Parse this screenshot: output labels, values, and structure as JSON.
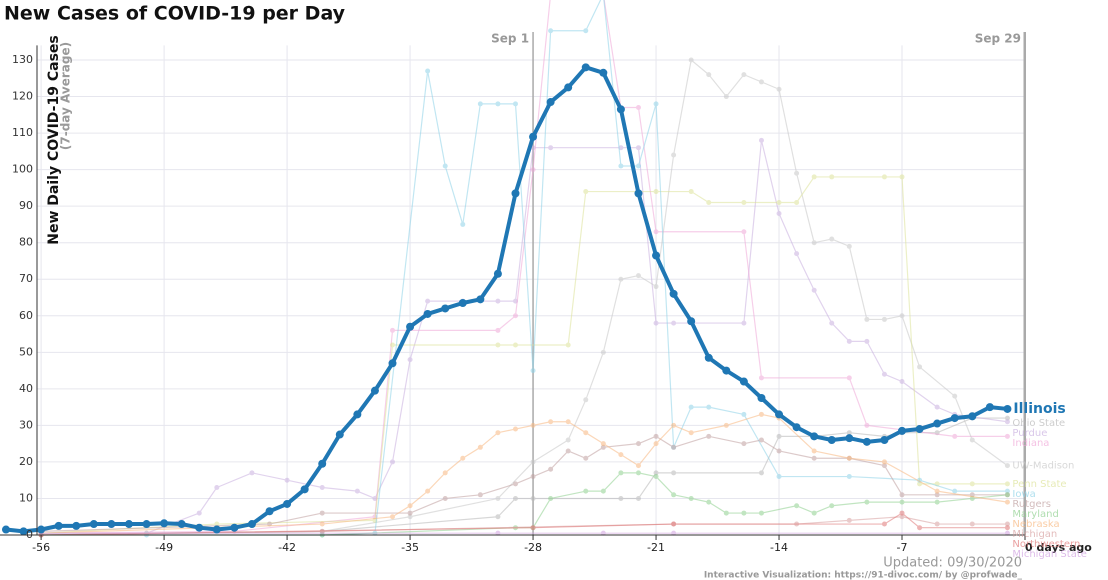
{
  "chart_data": {
    "type": "line",
    "title": "New Cases of COVID-19 per Day",
    "ylabel": "New Daily COVID-19 Cases",
    "ylabel_note": "(7-day Average)",
    "xlim": [
      -58.34,
      0
    ],
    "ylim": [
      0,
      134
    ],
    "xticks": [
      -56,
      -49,
      -42,
      -35,
      -28,
      -21,
      -14,
      -7,
      {
        "value": 0,
        "label": "0 days ago"
      }
    ],
    "yticks": [
      0,
      10,
      20,
      30,
      40,
      50,
      60,
      70,
      80,
      90,
      100,
      110,
      120,
      130
    ],
    "grid": true,
    "annotations": [
      {
        "x": -28,
        "label": "Sep 1"
      },
      {
        "x": 0,
        "label": "Sep 29"
      }
    ],
    "updated": "Updated: 09/30/2020",
    "credit": "Interactive Visualization: https://91-divoc.com/ by @profwade_",
    "series": [
      {
        "name": "Illinois",
        "color": "#1f77b4",
        "highlight": true,
        "x": [
          -58,
          -57,
          -56,
          -55,
          -54,
          -53,
          -52,
          -51,
          -50,
          -49,
          -48,
          -47,
          -46,
          -45,
          -44,
          -43,
          -42,
          -41,
          -40,
          -39,
          -38,
          -37,
          -36,
          -35,
          -34,
          -33,
          -32,
          -31,
          -30,
          -29,
          -28,
          -27,
          -26,
          -25,
          -24,
          -23,
          -22,
          -21,
          -20,
          -19,
          -18,
          -17,
          -16,
          -15,
          -14,
          -13,
          -12,
          -11,
          -10,
          -9,
          -8,
          -7,
          -6,
          -5,
          -4,
          -3,
          -2,
          -1
        ],
        "values": [
          1.5,
          1,
          1.5,
          2.5,
          2.5,
          3,
          3,
          3,
          3,
          3.2,
          3,
          2,
          1.5,
          2,
          3,
          6.5,
          8.5,
          12.5,
          19.5,
          27.5,
          33,
          39.5,
          47,
          57,
          60.5,
          62,
          63.5,
          64.5,
          71.5,
          93.5,
          109,
          118.5,
          122.5,
          128,
          126.5,
          116.5,
          93.5,
          76.5,
          66,
          58.5,
          48.5,
          45,
          42,
          37.5,
          33,
          29.5,
          27,
          26,
          26.5,
          25.5,
          26,
          28.5,
          29,
          30.5,
          32,
          32.5,
          35,
          34.5
        ]
      },
      {
        "name": "Ohio State",
        "color": "#b8b8b8",
        "x": [
          -56,
          -40,
          -30,
          -29,
          -28,
          -23,
          -22,
          -21,
          -20,
          -15,
          -14,
          -12,
          -10,
          -8,
          -7,
          -5,
          -3,
          -1
        ],
        "values": [
          0,
          1,
          5,
          10,
          10,
          10,
          10,
          17,
          17,
          17,
          27,
          27,
          28,
          27,
          28,
          28,
          32,
          32
        ]
      },
      {
        "name": "Purdue",
        "color": "#c9b0e0",
        "x": [
          -56,
          -50,
          -47,
          -46,
          -44,
          -42,
          -40,
          -38,
          -37,
          -36,
          -35,
          -34,
          -32,
          -30,
          -29,
          -28,
          -27,
          -23,
          -22,
          -21,
          -20,
          -16,
          -15,
          -14,
          -13,
          -12,
          -11,
          -10,
          -9,
          -8,
          -7,
          -5,
          -4,
          -1
        ],
        "values": [
          0.5,
          0.5,
          6,
          13,
          17,
          15,
          13,
          12,
          10,
          20,
          48,
          64,
          64,
          64,
          64,
          106,
          106,
          106,
          106,
          58,
          58,
          58,
          108,
          88,
          77,
          67,
          58,
          53,
          53,
          44,
          42,
          35,
          33,
          31
        ]
      },
      {
        "name": "Indiana",
        "color": "#f0a8d8",
        "x": [
          -56,
          -45,
          -37,
          -36,
          -30,
          -29,
          -28,
          -27,
          -24,
          -23,
          -22,
          -21,
          -16,
          -15,
          -10,
          -9,
          -4,
          -1
        ],
        "values": [
          0.5,
          1,
          5,
          56,
          56,
          60,
          100,
          148,
          148,
          117,
          117,
          83,
          83,
          43,
          43,
          30,
          27,
          27
        ]
      },
      {
        "name": "UW-Madison",
        "color": "#c8c8c8",
        "x": [
          -50,
          -40,
          -35,
          -30,
          -28,
          -26,
          -25,
          -24,
          -23,
          -22,
          -21,
          -20,
          -19,
          -18,
          -17,
          -16,
          -15,
          -14,
          -13,
          -12,
          -11,
          -10,
          -9,
          -8,
          -7,
          -6,
          -4,
          -3,
          -1
        ],
        "values": [
          0.5,
          1,
          5,
          10,
          20,
          26,
          37,
          50,
          70,
          71,
          68,
          104,
          130,
          126,
          120,
          126,
          124,
          122,
          99,
          80,
          81,
          79,
          59,
          59,
          60,
          46,
          38,
          26,
          19
        ]
      },
      {
        "name": "Penn State",
        "color": "#dde39a",
        "x": [
          -56,
          -46,
          -37,
          -36,
          -30,
          -29,
          -26,
          -25,
          -22,
          -21,
          -19,
          -18,
          -16,
          -14,
          -13,
          -12,
          -11,
          -8,
          -7,
          -6,
          -5,
          -3,
          -1
        ],
        "values": [
          0.5,
          3,
          4,
          52,
          52,
          52,
          52,
          94,
          94,
          94,
          94,
          91,
          91,
          91,
          91,
          98,
          98,
          98,
          98,
          14,
          14,
          14,
          14
        ]
      },
      {
        "name": "Iowa",
        "color": "#8fd3e8",
        "x": [
          -50,
          -40,
          -37,
          -34,
          -33,
          -32,
          -31,
          -30,
          -29,
          -28,
          -27,
          -25,
          -24,
          -23,
          -22,
          -21,
          -20,
          -19,
          -18,
          -16,
          -14,
          -10,
          -6,
          -4,
          -1
        ],
        "values": [
          0,
          0,
          0.5,
          127,
          101,
          85,
          118,
          118,
          118,
          45,
          138,
          138,
          148,
          101,
          101,
          118,
          24,
          35,
          35,
          33,
          16,
          16,
          15,
          12,
          12
        ]
      },
      {
        "name": "Rutgers",
        "color": "#c0a0a0",
        "x": [
          -56,
          -43,
          -40,
          -35,
          -33,
          -31,
          -29,
          -28,
          -27,
          -26,
          -25,
          -24,
          -22,
          -21,
          -20,
          -18,
          -16,
          -15,
          -14,
          -12,
          -10,
          -8,
          -7,
          -5,
          -3,
          -1
        ],
        "values": [
          1,
          3,
          6,
          6,
          10,
          11,
          14,
          16,
          18,
          23,
          21,
          24,
          25,
          27,
          24,
          27,
          25,
          26,
          23,
          21,
          21,
          19,
          11,
          11,
          11,
          11
        ]
      },
      {
        "name": "Maryland",
        "color": "#8fd08f",
        "x": [
          -56,
          -40,
          -29,
          -28,
          -27,
          -25,
          -24,
          -23,
          -22,
          -21,
          -20,
          -19,
          -18,
          -17,
          -16,
          -15,
          -13,
          -12,
          -11,
          -9,
          -7,
          -5,
          -3,
          -1
        ],
        "values": [
          0,
          0,
          2,
          2,
          10,
          12,
          12,
          17,
          17,
          16,
          11,
          10,
          9,
          6,
          6,
          6,
          8,
          6,
          8,
          9,
          9,
          9,
          10,
          11
        ]
      },
      {
        "name": "Nebraska",
        "color": "#f8b880",
        "x": [
          -56,
          -40,
          -36,
          -35,
          -34,
          -33,
          -32,
          -31,
          -30,
          -29,
          -28,
          -27,
          -26,
          -25,
          -24,
          -23,
          -22,
          -21,
          -20,
          -19,
          -17,
          -15,
          -14,
          -12,
          -10,
          -8,
          -5,
          -1
        ],
        "values": [
          0.5,
          3,
          5,
          8,
          12,
          17,
          21,
          24,
          28,
          29,
          30,
          31,
          31,
          28,
          25,
          22,
          19,
          25,
          30,
          28,
          30,
          33,
          32,
          23,
          21,
          20,
          12,
          9
        ]
      },
      {
        "name": "Michigan",
        "color": "#d8a0a0",
        "x": [
          -56,
          -40,
          -20,
          -13,
          -10,
          -7,
          -5,
          -3,
          -1
        ],
        "values": [
          0,
          1,
          3,
          3,
          4,
          5,
          3,
          3,
          3
        ]
      },
      {
        "name": "Northwestern",
        "color": "#e07878",
        "x": [
          -56,
          -28,
          -20,
          -8,
          -7,
          -6,
          -1
        ],
        "values": [
          0,
          2,
          3,
          3,
          6,
          2,
          2
        ]
      },
      {
        "name": "Michigan State",
        "color": "#d0a0e0",
        "x": [
          -56,
          -30,
          -24,
          -20,
          -1
        ],
        "values": [
          0.5,
          0.5,
          0.5,
          0.5,
          0.5
        ]
      }
    ]
  }
}
